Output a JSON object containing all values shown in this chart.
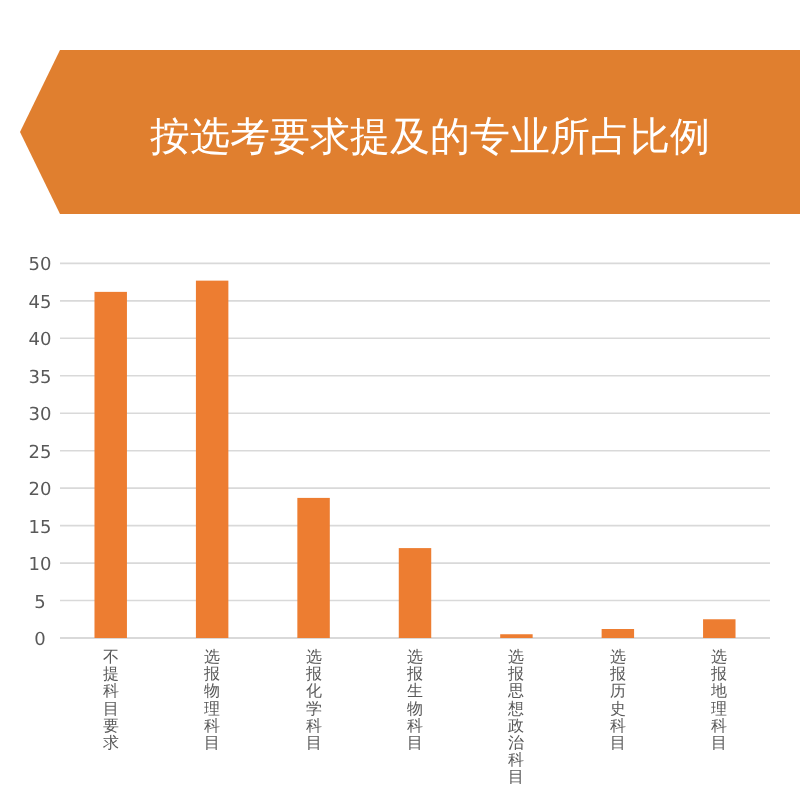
{
  "chart_data": {
    "type": "bar",
    "title": "按选考要求提及的专业所占比例",
    "categories": [
      "不提科目要求",
      "选报物理科目",
      "选报化学科目",
      "选报生物科目",
      "选报思想政治科目",
      "选报历史科目",
      "选报地理科目"
    ],
    "values": [
      46.2,
      47.7,
      18.7,
      12.0,
      0.5,
      1.2,
      2.5
    ],
    "color": "#ed7d31",
    "ylim": [
      0,
      50
    ],
    "yticks": [
      0,
      5,
      10,
      15,
      20,
      25,
      30,
      35,
      40,
      45,
      50
    ],
    "grid": "y"
  }
}
